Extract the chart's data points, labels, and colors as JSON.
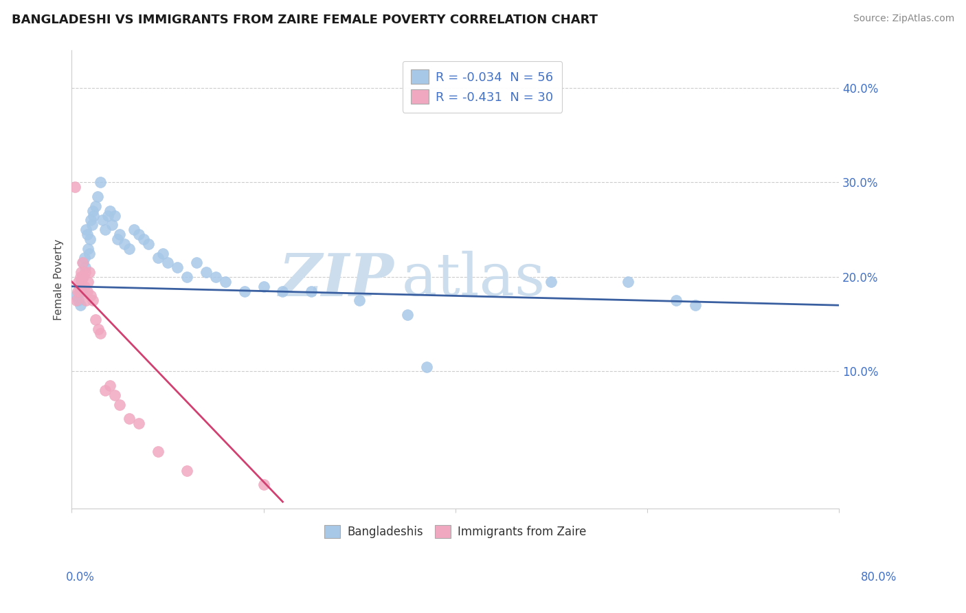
{
  "title": "BANGLADESHI VS IMMIGRANTS FROM ZAIRE FEMALE POVERTY CORRELATION CHART",
  "source": "Source: ZipAtlas.com",
  "ylabel": "Female Poverty",
  "xlim": [
    0.0,
    0.8
  ],
  "ylim": [
    -0.045,
    0.44
  ],
  "right_ytick_vals": [
    0.1,
    0.2,
    0.3,
    0.4
  ],
  "right_ytick_labels": [
    "10.0%",
    "20.0%",
    "30.0%",
    "40.0%"
  ],
  "blue_fill": "#a8c8e8",
  "pink_fill": "#f0a8c0",
  "blue_line": "#3a5fa0",
  "pink_line": "#d04070",
  "text_blue": "#4472c4",
  "text_dark": "#333333",
  "grid_color": "#cccccc",
  "bg_color": "#ffffff",
  "watermark_color": "#ccdded",
  "legend1_blue_label_r": "-0.034",
  "legend1_blue_label_n": "56",
  "legend1_pink_label_r": "-0.431",
  "legend1_pink_label_n": "30",
  "blue_trend_x0": 0.0,
  "blue_trend_x1": 0.8,
  "blue_trend_y0": 0.19,
  "blue_trend_y1": 0.17,
  "pink_trend_x0": 0.0,
  "pink_trend_x1": 0.22,
  "pink_trend_y0": 0.195,
  "pink_trend_y1": -0.038,
  "blue_x": [
    0.005,
    0.007,
    0.008,
    0.009,
    0.01,
    0.01,
    0.011,
    0.012,
    0.013,
    0.014,
    0.015,
    0.016,
    0.017,
    0.018,
    0.019,
    0.02,
    0.021,
    0.022,
    0.023,
    0.025,
    0.027,
    0.03,
    0.032,
    0.035,
    0.038,
    0.04,
    0.042,
    0.045,
    0.048,
    0.05,
    0.055,
    0.06,
    0.065,
    0.07,
    0.075,
    0.08,
    0.09,
    0.095,
    0.1,
    0.11,
    0.12,
    0.13,
    0.14,
    0.15,
    0.16,
    0.18,
    0.2,
    0.22,
    0.25,
    0.3,
    0.35,
    0.37,
    0.5,
    0.58,
    0.63,
    0.65
  ],
  "blue_y": [
    0.18,
    0.175,
    0.19,
    0.17,
    0.195,
    0.185,
    0.2,
    0.215,
    0.22,
    0.21,
    0.25,
    0.245,
    0.23,
    0.225,
    0.24,
    0.26,
    0.255,
    0.27,
    0.265,
    0.275,
    0.285,
    0.3,
    0.26,
    0.25,
    0.265,
    0.27,
    0.255,
    0.265,
    0.24,
    0.245,
    0.235,
    0.23,
    0.25,
    0.245,
    0.24,
    0.235,
    0.22,
    0.225,
    0.215,
    0.21,
    0.2,
    0.215,
    0.205,
    0.2,
    0.195,
    0.185,
    0.19,
    0.185,
    0.185,
    0.175,
    0.16,
    0.105,
    0.195,
    0.195,
    0.175,
    0.17
  ],
  "pink_x": [
    0.003,
    0.005,
    0.006,
    0.007,
    0.008,
    0.009,
    0.01,
    0.01,
    0.011,
    0.012,
    0.013,
    0.014,
    0.015,
    0.016,
    0.017,
    0.018,
    0.02,
    0.022,
    0.025,
    0.028,
    0.03,
    0.035,
    0.04,
    0.045,
    0.05,
    0.06,
    0.07,
    0.09,
    0.12,
    0.2
  ],
  "pink_y": [
    0.295,
    0.175,
    0.185,
    0.195,
    0.185,
    0.2,
    0.205,
    0.195,
    0.215,
    0.2,
    0.19,
    0.205,
    0.175,
    0.185,
    0.195,
    0.205,
    0.18,
    0.175,
    0.155,
    0.145,
    0.14,
    0.08,
    0.085,
    0.075,
    0.065,
    0.05,
    0.045,
    0.015,
    -0.005,
    -0.02
  ]
}
